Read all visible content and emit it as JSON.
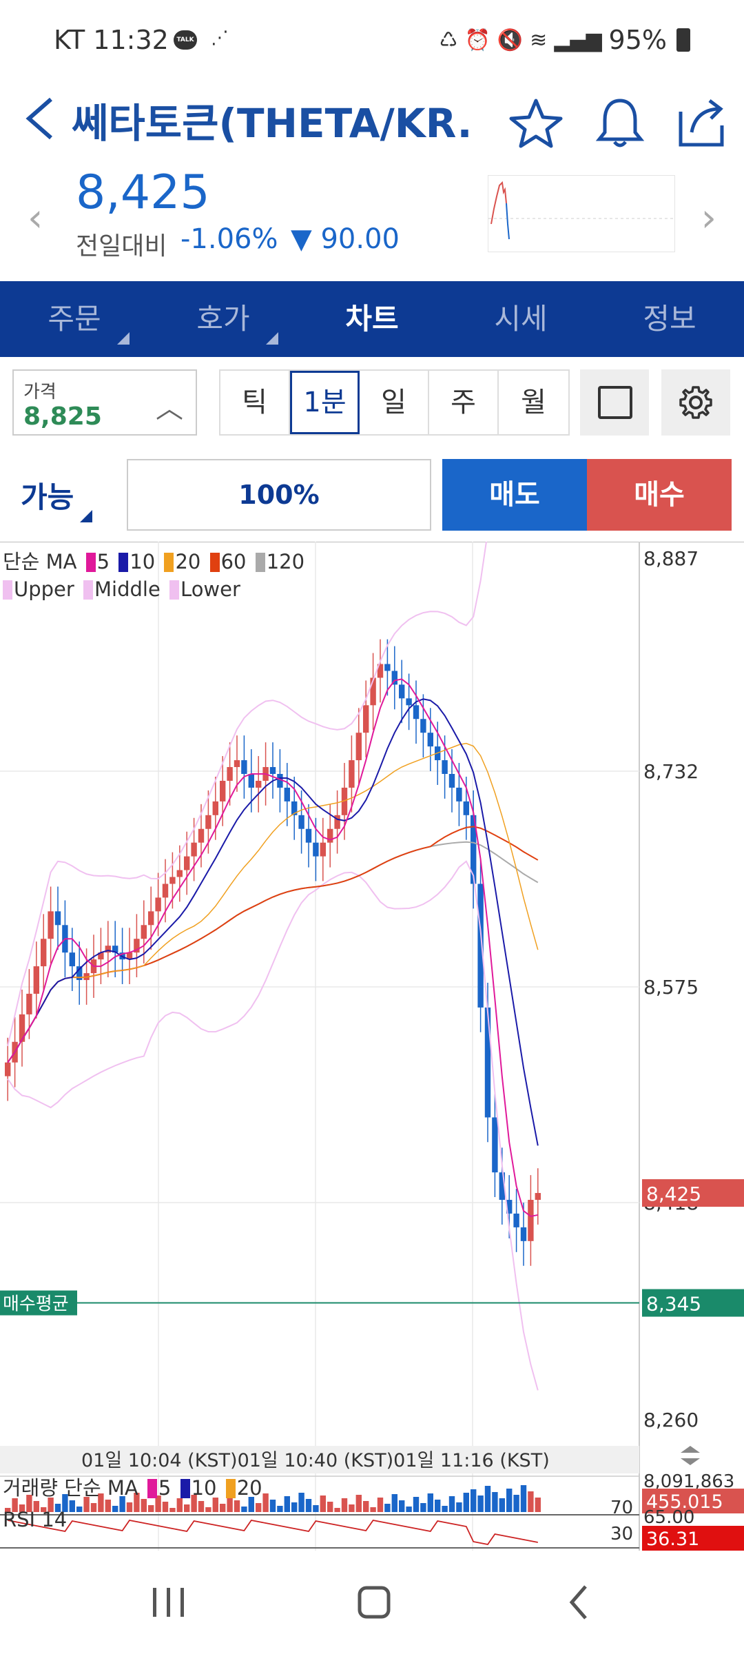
{
  "status": {
    "carrier": "KT",
    "time": "11:32",
    "talk_badge": "TALK",
    "battery": "95%"
  },
  "header": {
    "title": "쎄타토큰(THETA/KR...",
    "icons": [
      "back-arrow-icon",
      "star-icon",
      "bell-icon",
      "share-icon"
    ]
  },
  "price": {
    "current": "8,425",
    "change_label": "전일대비",
    "change_pct": "-1.06%",
    "change_abs": "▼ 90.00"
  },
  "tabs": [
    {
      "label": "주문",
      "active": false
    },
    {
      "label": "호가",
      "active": false
    },
    {
      "label": "차트",
      "active": true
    },
    {
      "label": "시세",
      "active": false
    },
    {
      "label": "정보",
      "active": false
    }
  ],
  "controls": {
    "price_label": "가격",
    "price_value": "8,825",
    "periods": [
      {
        "label": "틱",
        "active": false
      },
      {
        "label": "1분",
        "active": true
      },
      {
        "label": "일",
        "active": false
      },
      {
        "label": "주",
        "active": false
      },
      {
        "label": "월",
        "active": false
      }
    ]
  },
  "order": {
    "available_label": "가능",
    "percent": "100%",
    "sell_label": "매도",
    "buy_label": "매수"
  },
  "chart_data": {
    "type": "candlestick",
    "legend_ma_label": "단순 MA",
    "ma_series": [
      {
        "name": "5",
        "color": "#e0199a"
      },
      {
        "name": "10",
        "color": "#1a1aa8"
      },
      {
        "name": "20",
        "color": "#f0a020"
      },
      {
        "name": "60",
        "color": "#e04010"
      },
      {
        "name": "120",
        "color": "#aaaaaa"
      }
    ],
    "bb_series": [
      {
        "name": "Upper",
        "color": "#f0c0f0"
      },
      {
        "name": "Middle",
        "color": "#f0c0f0"
      },
      {
        "name": "Lower",
        "color": "#f0c0f0"
      }
    ],
    "y_ticks": [
      8887,
      8732,
      8575,
      8418,
      8260
    ],
    "y_tick_labels": [
      "8,887",
      "8,732",
      "8,575",
      "8,418",
      "8,260"
    ],
    "ylim": [
      8260,
      8887
    ],
    "current_price_label": "8,425",
    "current_price": 8425,
    "avg_buy_label": "매수평균",
    "avg_buy_value_label": "8,345",
    "avg_buy_value": 8345,
    "x_labels": [
      "01일 10:04 (KST)",
      "01일 10:40 (KST)",
      "01일 11:16 (KST)"
    ],
    "closes": [
      8520,
      8535,
      8555,
      8570,
      8590,
      8610,
      8630,
      8620,
      8600,
      8590,
      8580,
      8585,
      8595,
      8600,
      8605,
      8600,
      8595,
      8600,
      8610,
      8620,
      8630,
      8640,
      8650,
      8655,
      8660,
      8670,
      8680,
      8690,
      8700,
      8710,
      8725,
      8735,
      8740,
      8730,
      8720,
      8725,
      8735,
      8730,
      8720,
      8710,
      8700,
      8690,
      8680,
      8670,
      8680,
      8690,
      8700,
      8720,
      8740,
      8760,
      8780,
      8800,
      8810,
      8805,
      8795,
      8785,
      8780,
      8770,
      8760,
      8750,
      8740,
      8730,
      8720,
      8710,
      8700,
      8650,
      8560,
      8480,
      8440,
      8420,
      8410,
      8400,
      8390,
      8420,
      8425
    ],
    "volume_label": "거래량 단순 MA",
    "volume_ma": [
      {
        "name": "5",
        "color": "#e0199a"
      },
      {
        "name": "10",
        "color": "#1a1aa8"
      },
      {
        "name": "20",
        "color": "#f0a020"
      }
    ],
    "volume_axis_top": "8,091,863",
    "volume_current": "455.015",
    "volume_pane_marker": "70",
    "rsi_label": "RSI 14",
    "rsi_axis_top": "65.00",
    "rsi_marker": "30",
    "rsi_current": "36.31"
  },
  "colors": {
    "brand": "#0d3a93",
    "up": "#d9534f",
    "down": "#1a66c9",
    "avg": "#1a8a6a"
  }
}
